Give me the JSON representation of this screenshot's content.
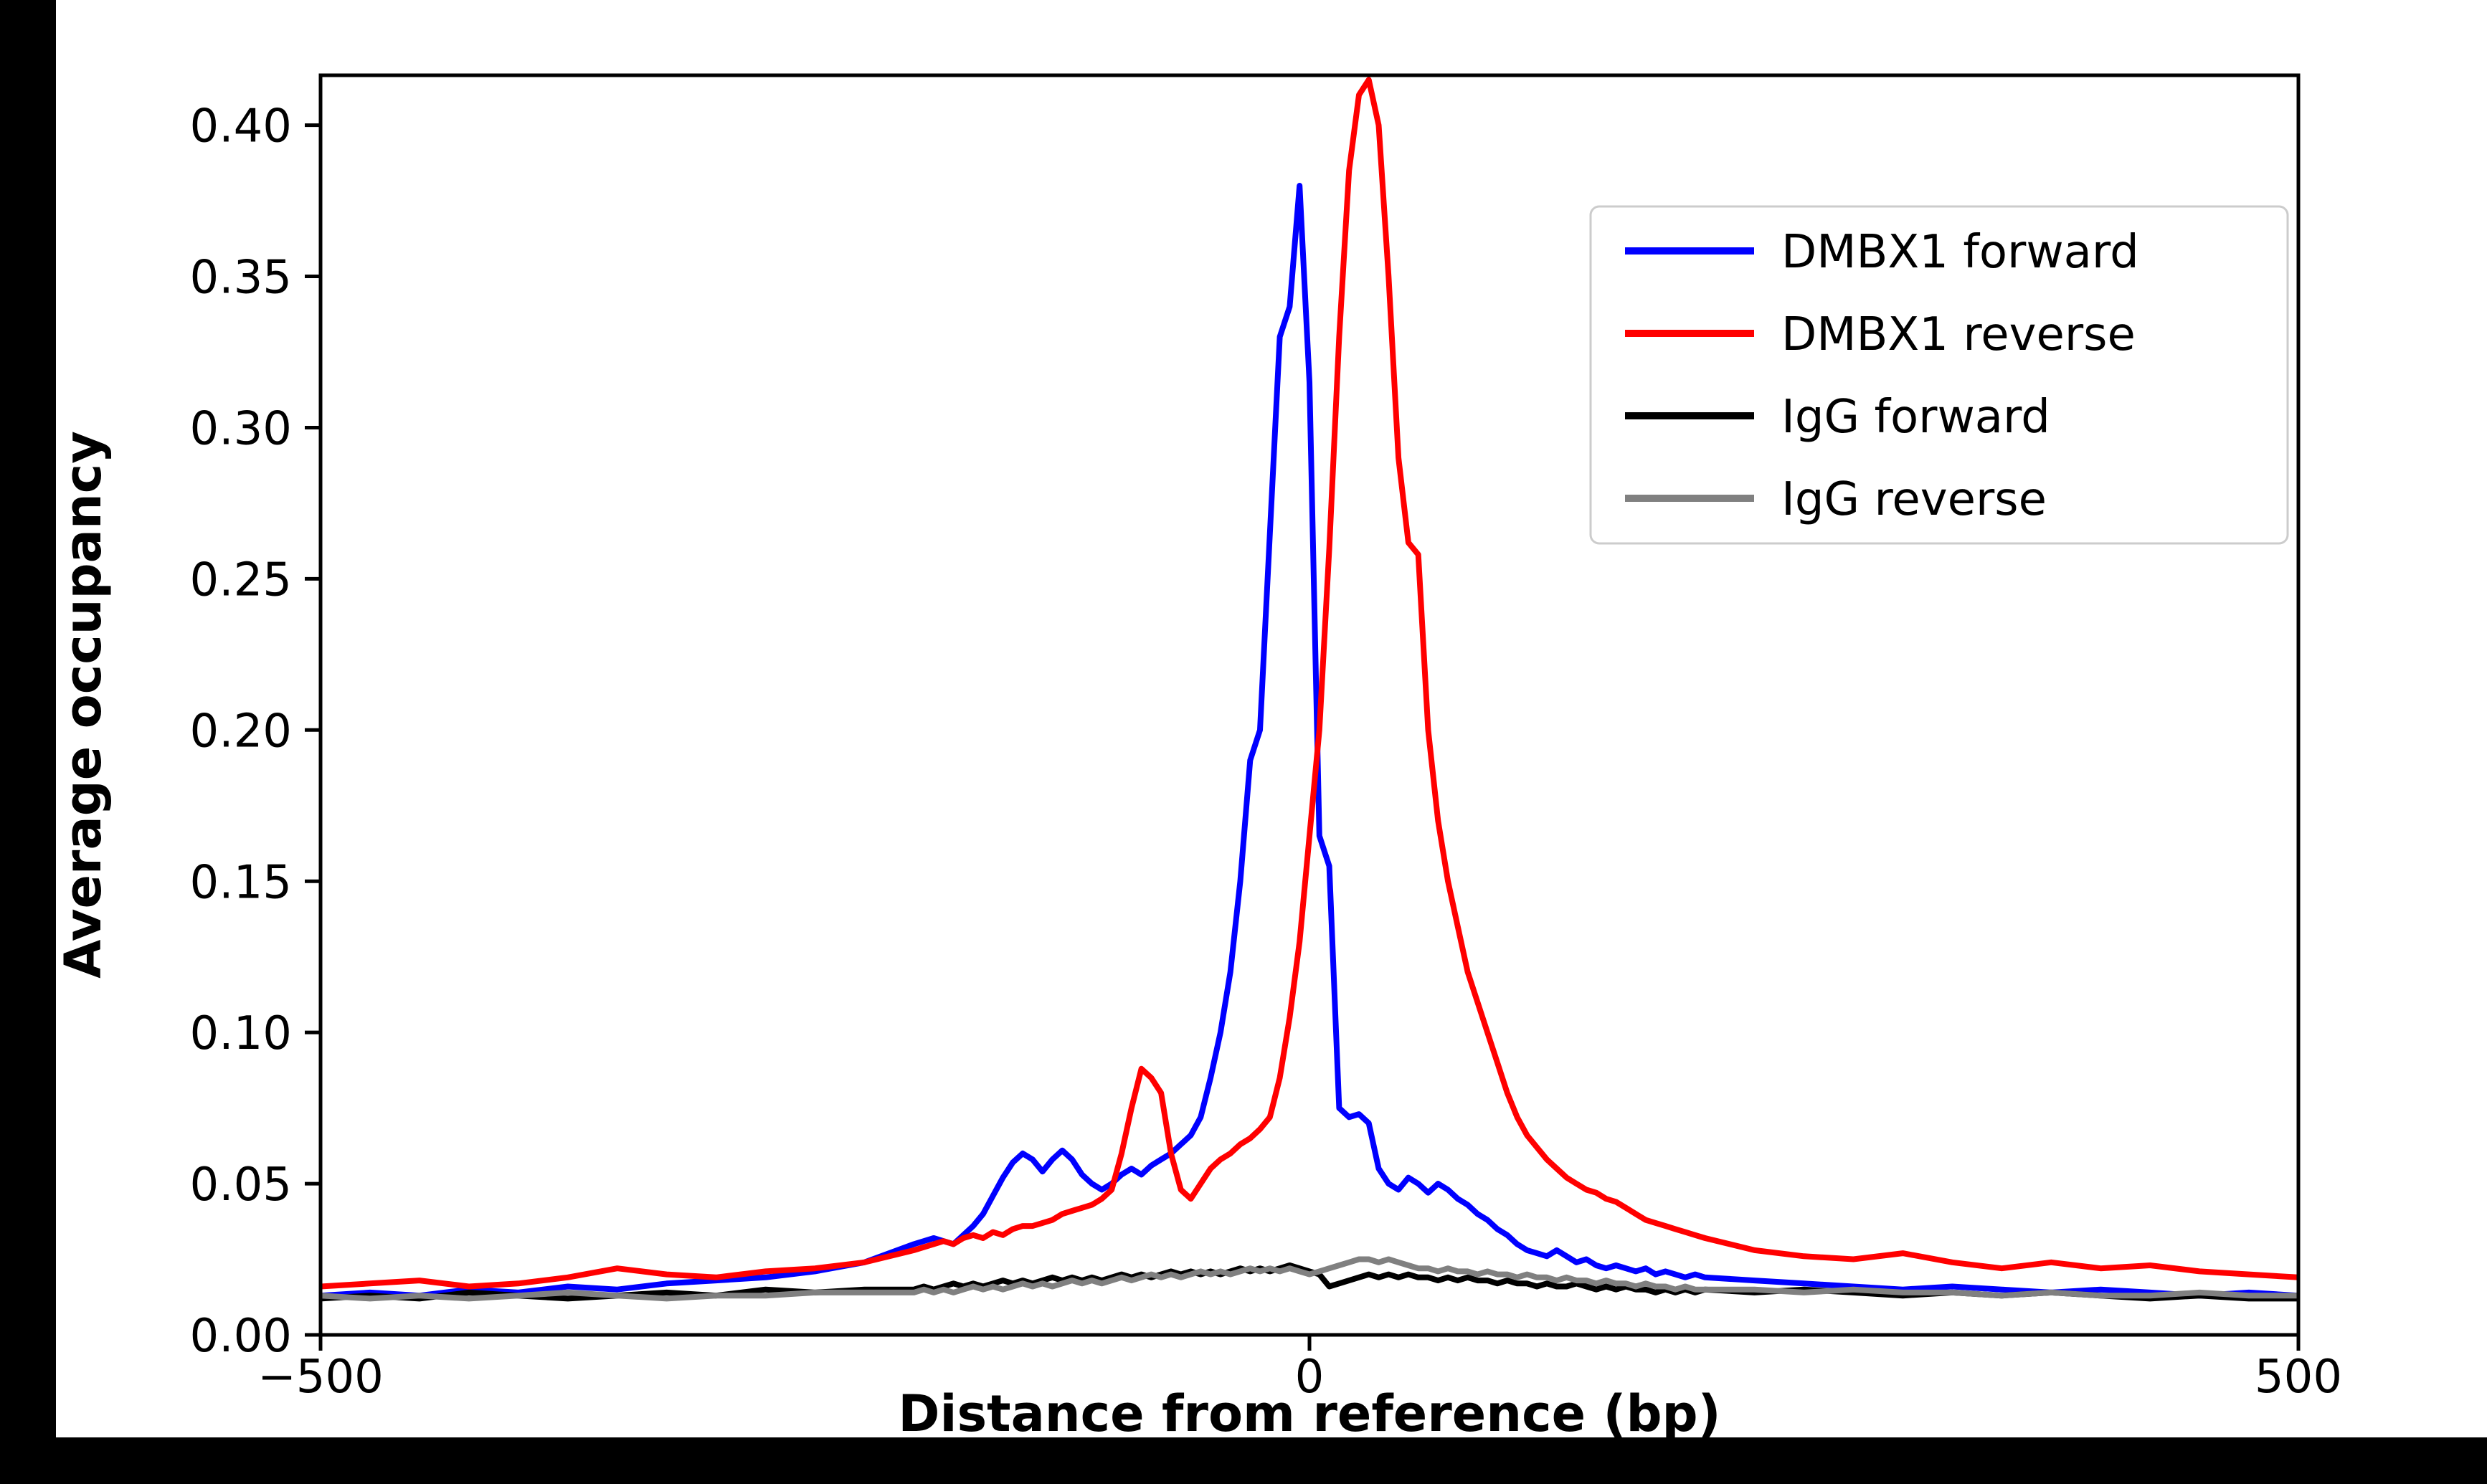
{
  "figure": {
    "background_color": "#000000",
    "canvas_color": "#ffffff"
  },
  "chart_data": {
    "type": "line",
    "title": "",
    "xlabel": "Distance from reference (bp)",
    "ylabel": "Average occupancy",
    "xlim": [
      -500,
      500
    ],
    "ylim": [
      0,
      0.4165
    ],
    "grid": false,
    "legend_position": "upper right",
    "xtick_values": [
      -500,
      0,
      500
    ],
    "xtick_labels": [
      "−500",
      "0",
      "500"
    ],
    "ytick_values": [
      0,
      0.05,
      0.1,
      0.15,
      0.2,
      0.25,
      0.3,
      0.35,
      0.4
    ],
    "ytick_labels": [
      "0.00",
      "0.05",
      "0.10",
      "0.15",
      "0.20",
      "0.25",
      "0.30",
      "0.35",
      "0.40"
    ],
    "x": [
      -500,
      -475,
      -450,
      -425,
      -400,
      -375,
      -350,
      -325,
      -300,
      -275,
      -250,
      -225,
      -200,
      -195,
      -190,
      -185,
      -180,
      -175,
      -170,
      -165,
      -160,
      -155,
      -150,
      -145,
      -140,
      -135,
      -130,
      -125,
      -120,
      -115,
      -110,
      -105,
      -100,
      -95,
      -90,
      -85,
      -80,
      -75,
      -70,
      -65,
      -60,
      -55,
      -50,
      -45,
      -40,
      -35,
      -30,
      -25,
      -20,
      -15,
      -10,
      -5,
      0,
      5,
      10,
      15,
      20,
      25,
      30,
      35,
      40,
      45,
      50,
      55,
      60,
      65,
      70,
      75,
      80,
      85,
      90,
      95,
      100,
      105,
      110,
      115,
      120,
      125,
      130,
      135,
      140,
      145,
      150,
      155,
      160,
      165,
      170,
      175,
      180,
      185,
      190,
      195,
      200,
      225,
      250,
      275,
      300,
      325,
      350,
      375,
      400,
      425,
      450,
      475,
      500
    ],
    "series": [
      {
        "name": "DMBX1 forward",
        "color": "#0000ff",
        "peak_x": -5,
        "peak_y": 0.38,
        "values": [
          0.013,
          0.014,
          0.013,
          0.015,
          0.014,
          0.016,
          0.015,
          0.017,
          0.018,
          0.019,
          0.021,
          0.024,
          0.03,
          0.031,
          0.032,
          0.031,
          0.03,
          0.033,
          0.036,
          0.04,
          0.046,
          0.052,
          0.057,
          0.06,
          0.058,
          0.054,
          0.058,
          0.061,
          0.058,
          0.053,
          0.05,
          0.048,
          0.05,
          0.053,
          0.055,
          0.053,
          0.056,
          0.058,
          0.06,
          0.063,
          0.066,
          0.072,
          0.085,
          0.1,
          0.12,
          0.15,
          0.19,
          0.2,
          0.265,
          0.33,
          0.34,
          0.38,
          0.315,
          0.165,
          0.155,
          0.075,
          0.072,
          0.073,
          0.07,
          0.055,
          0.05,
          0.048,
          0.052,
          0.05,
          0.047,
          0.05,
          0.048,
          0.045,
          0.043,
          0.04,
          0.038,
          0.035,
          0.033,
          0.03,
          0.028,
          0.027,
          0.026,
          0.028,
          0.026,
          0.024,
          0.025,
          0.023,
          0.022,
          0.023,
          0.022,
          0.021,
          0.022,
          0.02,
          0.021,
          0.02,
          0.019,
          0.02,
          0.019,
          0.018,
          0.017,
          0.016,
          0.015,
          0.016,
          0.015,
          0.014,
          0.015,
          0.014,
          0.013,
          0.014,
          0.013
        ]
      },
      {
        "name": "DMBX1 reverse",
        "color": "#ff0000",
        "peak_x": 30,
        "peak_y": 0.415,
        "values": [
          0.016,
          0.017,
          0.018,
          0.016,
          0.017,
          0.019,
          0.022,
          0.02,
          0.019,
          0.021,
          0.022,
          0.024,
          0.028,
          0.029,
          0.03,
          0.031,
          0.03,
          0.032,
          0.033,
          0.032,
          0.034,
          0.033,
          0.035,
          0.036,
          0.036,
          0.037,
          0.038,
          0.04,
          0.041,
          0.042,
          0.043,
          0.045,
          0.048,
          0.06,
          0.075,
          0.088,
          0.085,
          0.08,
          0.06,
          0.048,
          0.045,
          0.05,
          0.055,
          0.058,
          0.06,
          0.063,
          0.065,
          0.068,
          0.072,
          0.085,
          0.105,
          0.13,
          0.165,
          0.2,
          0.26,
          0.33,
          0.385,
          0.41,
          0.415,
          0.4,
          0.35,
          0.29,
          0.262,
          0.258,
          0.2,
          0.17,
          0.15,
          0.135,
          0.12,
          0.11,
          0.1,
          0.09,
          0.08,
          0.072,
          0.066,
          0.062,
          0.058,
          0.055,
          0.052,
          0.05,
          0.048,
          0.047,
          0.045,
          0.044,
          0.042,
          0.04,
          0.038,
          0.037,
          0.036,
          0.035,
          0.034,
          0.033,
          0.032,
          0.028,
          0.026,
          0.025,
          0.027,
          0.024,
          0.022,
          0.024,
          0.022,
          0.023,
          0.021,
          0.02,
          0.019
        ]
      },
      {
        "name": "IgG forward",
        "color": "#000000",
        "values": [
          0.012,
          0.013,
          0.012,
          0.014,
          0.013,
          0.012,
          0.013,
          0.014,
          0.013,
          0.015,
          0.014,
          0.015,
          0.015,
          0.016,
          0.015,
          0.016,
          0.017,
          0.016,
          0.017,
          0.016,
          0.017,
          0.018,
          0.017,
          0.018,
          0.017,
          0.018,
          0.019,
          0.018,
          0.019,
          0.018,
          0.019,
          0.018,
          0.019,
          0.02,
          0.019,
          0.02,
          0.019,
          0.02,
          0.021,
          0.02,
          0.021,
          0.02,
          0.021,
          0.02,
          0.021,
          0.022,
          0.021,
          0.022,
          0.021,
          0.022,
          0.023,
          0.022,
          0.021,
          0.02,
          0.016,
          0.017,
          0.018,
          0.019,
          0.02,
          0.019,
          0.02,
          0.019,
          0.02,
          0.019,
          0.019,
          0.018,
          0.019,
          0.018,
          0.019,
          0.018,
          0.018,
          0.017,
          0.018,
          0.017,
          0.017,
          0.016,
          0.017,
          0.016,
          0.016,
          0.017,
          0.016,
          0.015,
          0.016,
          0.015,
          0.016,
          0.015,
          0.015,
          0.014,
          0.015,
          0.014,
          0.015,
          0.014,
          0.015,
          0.014,
          0.015,
          0.014,
          0.013,
          0.014,
          0.013,
          0.014,
          0.013,
          0.012,
          0.013,
          0.012,
          0.012
        ]
      },
      {
        "name": "IgG reverse",
        "color": "#808080",
        "values": [
          0.013,
          0.012,
          0.013,
          0.012,
          0.013,
          0.014,
          0.013,
          0.012,
          0.013,
          0.013,
          0.014,
          0.014,
          0.014,
          0.015,
          0.014,
          0.015,
          0.014,
          0.015,
          0.016,
          0.015,
          0.016,
          0.015,
          0.016,
          0.017,
          0.016,
          0.017,
          0.016,
          0.017,
          0.018,
          0.017,
          0.018,
          0.017,
          0.018,
          0.019,
          0.018,
          0.019,
          0.02,
          0.019,
          0.02,
          0.019,
          0.02,
          0.021,
          0.02,
          0.021,
          0.02,
          0.021,
          0.022,
          0.021,
          0.022,
          0.021,
          0.022,
          0.021,
          0.02,
          0.021,
          0.022,
          0.023,
          0.024,
          0.025,
          0.025,
          0.024,
          0.025,
          0.024,
          0.023,
          0.022,
          0.022,
          0.021,
          0.022,
          0.021,
          0.021,
          0.02,
          0.021,
          0.02,
          0.02,
          0.019,
          0.02,
          0.019,
          0.019,
          0.018,
          0.019,
          0.018,
          0.018,
          0.017,
          0.018,
          0.017,
          0.017,
          0.016,
          0.017,
          0.016,
          0.016,
          0.015,
          0.016,
          0.015,
          0.015,
          0.015,
          0.014,
          0.015,
          0.014,
          0.014,
          0.013,
          0.014,
          0.013,
          0.013,
          0.014,
          0.013,
          0.013
        ]
      }
    ]
  }
}
